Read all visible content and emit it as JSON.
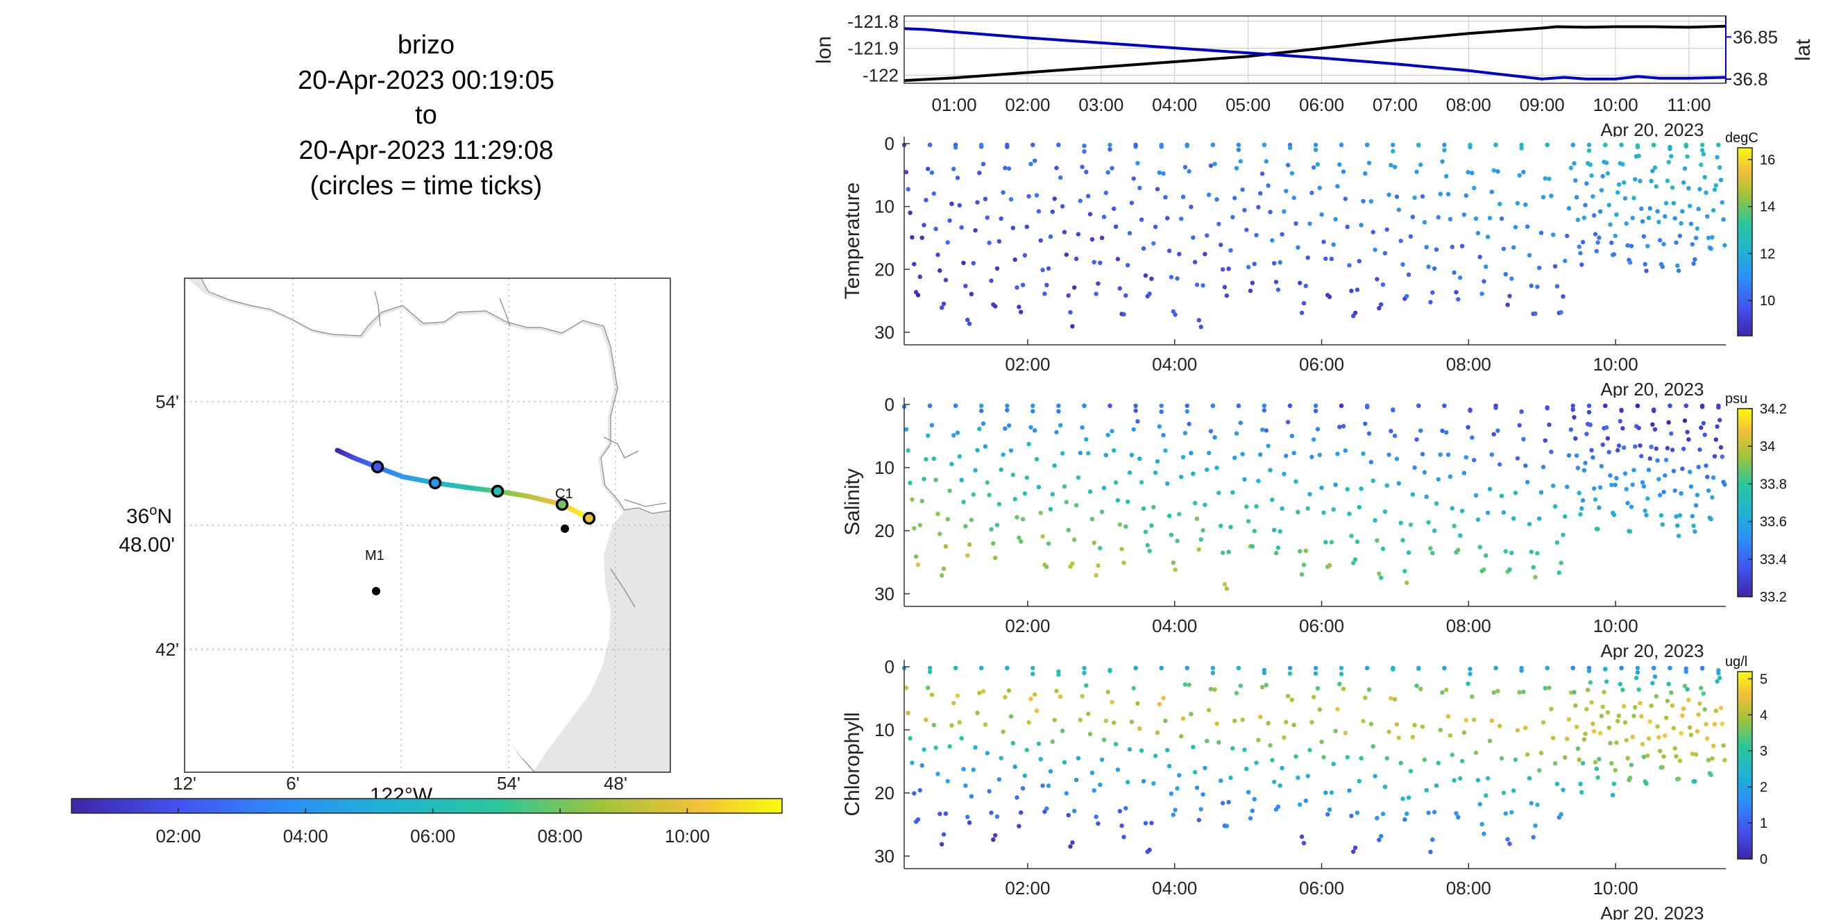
{
  "title": {
    "vehicle": "brizo",
    "start": "20-Apr-2023 00:19:05",
    "to": "to",
    "end": "20-Apr-2023 11:29:08",
    "note": "(circles = time ticks)"
  },
  "map": {
    "lat_ticks": [
      "54'",
      "36°N 48.00'",
      "42'"
    ],
    "lat_label_deg": "36",
    "lat_label_min": "48.00'",
    "lon_ticks": [
      "12'",
      "6'",
      "54'",
      "48'"
    ],
    "lon_center_label": "122°W",
    "moorings": [
      {
        "name": "C1"
      },
      {
        "name": "M1"
      }
    ],
    "time_colorbar_ticks": [
      "02:00",
      "04:00",
      "06:00",
      "08:00",
      "10:00"
    ]
  },
  "chart_data": [
    {
      "type": "line",
      "name": "position-timeseries",
      "ylabel": "lon",
      "ylabel_right": "lat",
      "x_ticks": [
        "01:00",
        "02:00",
        "03:00",
        "04:00",
        "05:00",
        "06:00",
        "07:00",
        "08:00",
        "09:00",
        "10:00",
        "11:00"
      ],
      "x_date": "Apr 20, 2023",
      "y_ticks": [
        "-121.8",
        "-121.9",
        "-122"
      ],
      "y_ticks_right": [
        "36.85",
        "36.8"
      ],
      "ylim": [
        -122.03,
        -121.78
      ],
      "ylim_right": [
        36.795,
        36.875
      ],
      "xlim": [
        0.32,
        11.5
      ],
      "series": [
        {
          "name": "lon",
          "color": "#000000",
          "x": [
            0.32,
            1,
            2,
            3,
            4,
            5,
            6,
            7,
            8,
            8.5,
            9,
            9.2,
            9.6,
            10,
            10.5,
            11,
            11.5
          ],
          "y": [
            -122.02,
            -122.01,
            -121.99,
            -121.97,
            -121.95,
            -121.93,
            -121.9,
            -121.87,
            -121.845,
            -121.835,
            -121.825,
            -121.82,
            -121.822,
            -121.82,
            -121.82,
            -121.822,
            -121.818
          ]
        },
        {
          "name": "lat",
          "color": "#0000cc",
          "axis": "right",
          "x": [
            0.32,
            0.6,
            1,
            2,
            3,
            4,
            5,
            6,
            7,
            8,
            8.5,
            9,
            9.3,
            9.6,
            10,
            10.3,
            10.6,
            11,
            11.5
          ],
          "y": [
            36.86,
            36.859,
            36.856,
            36.849,
            36.843,
            36.837,
            36.831,
            36.825,
            36.818,
            36.81,
            36.805,
            36.8,
            36.802,
            36.8,
            36.8,
            36.803,
            36.801,
            36.801,
            36.802
          ]
        }
      ]
    },
    {
      "type": "scatter",
      "name": "temperature",
      "ylabel": "Temperature",
      "units": "degC",
      "y_ticks": [
        "0",
        "10",
        "20",
        "30"
      ],
      "x_ticks": [
        "02:00",
        "04:00",
        "06:00",
        "08:00",
        "10:00"
      ],
      "x_date": "Apr 20, 2023",
      "ylim": [
        0,
        32
      ],
      "xlim": [
        0.32,
        11.5
      ],
      "clim": [
        8.5,
        16.5
      ],
      "colorbar_ticks": [
        "16",
        "14",
        "12",
        "10"
      ],
      "colorbar_values": [
        16,
        14,
        12,
        10
      ],
      "depth_profile": {
        "depth": [
          0,
          5,
          10,
          15,
          20,
          25,
          30
        ],
        "value_start": [
          9.8,
          9.6,
          9.5,
          9.4,
          9.3,
          9.2,
          9.1
        ],
        "value_end": [
          12.6,
          12.1,
          11.6,
          11.1,
          10.6,
          10.2,
          9.8
        ]
      }
    },
    {
      "type": "scatter",
      "name": "salinity",
      "ylabel": "Salinity",
      "units": "psu",
      "y_ticks": [
        "0",
        "10",
        "20",
        "30"
      ],
      "x_ticks": [
        "02:00",
        "04:00",
        "06:00",
        "08:00",
        "10:00"
      ],
      "x_date": "Apr 20, 2023",
      "ylim": [
        0,
        32
      ],
      "xlim": [
        0.32,
        11.5
      ],
      "clim": [
        33.2,
        34.2
      ],
      "colorbar_ticks": [
        "34.2",
        "34",
        "33.8",
        "33.6",
        "33.4",
        "33.2"
      ],
      "colorbar_values": [
        34.2,
        34.0,
        33.8,
        33.6,
        33.4,
        33.2
      ],
      "depth_profile": {
        "depth": [
          0,
          5,
          10,
          15,
          20,
          25,
          30
        ],
        "value_start": [
          33.5,
          33.65,
          33.75,
          33.85,
          33.95,
          34.0,
          34.02
        ],
        "value_end": [
          33.22,
          33.3,
          33.42,
          33.55,
          33.65,
          33.75,
          33.85
        ]
      }
    },
    {
      "type": "scatter",
      "name": "chlorophyll",
      "ylabel": "Chlorophyll",
      "units": "ug/l",
      "y_ticks": [
        "0",
        "10",
        "20",
        "30"
      ],
      "x_ticks": [
        "02:00",
        "04:00",
        "06:00",
        "08:00",
        "10:00"
      ],
      "x_date": "Apr 20, 2023",
      "ylim": [
        0,
        32
      ],
      "xlim": [
        0.32,
        11.5
      ],
      "clim": [
        0,
        5.2
      ],
      "colorbar_ticks": [
        "5",
        "4",
        "3",
        "2",
        "1",
        "0"
      ],
      "colorbar_values": [
        5,
        4,
        3,
        2,
        1,
        0
      ],
      "depth_profile": {
        "depth": [
          0,
          5,
          10,
          15,
          20,
          25,
          30
        ],
        "value_start": [
          2.5,
          4.5,
          3.5,
          2.0,
          1.2,
          0.6,
          0.3
        ],
        "value_end": [
          1.5,
          4.0,
          4.5,
          3.8,
          3.0,
          2.0,
          1.0
        ]
      }
    }
  ],
  "colors": {
    "parula_start": "#3e26a8",
    "parula_end": "#f9fb0e",
    "lat_axis": "#0000cc"
  }
}
